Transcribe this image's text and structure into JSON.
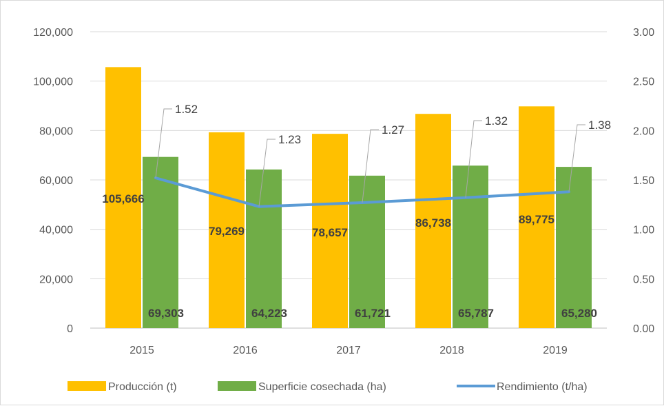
{
  "chart_data": {
    "type": "bar",
    "categories": [
      "2015",
      "2016",
      "2017",
      "2018",
      "2019"
    ],
    "series": [
      {
        "name": "Producción (t)",
        "kind": "bar",
        "axis": "left",
        "color": "#FFC000",
        "values": [
          105666,
          79269,
          78657,
          86738,
          89775
        ],
        "labels": [
          "105,666",
          "79,269",
          "78,657",
          "86,738",
          "89,775"
        ]
      },
      {
        "name": "Superficie cosechada (ha)",
        "kind": "bar",
        "axis": "left",
        "color": "#70AD47",
        "values": [
          69303,
          64223,
          61721,
          65787,
          65280
        ],
        "labels": [
          "69,303",
          "64,223",
          "61,721",
          "65,787",
          "65,280"
        ]
      },
      {
        "name": "Rendimiento (t/ha)",
        "kind": "line",
        "axis": "right",
        "color": "#5B9BD5",
        "values": [
          1.52,
          1.23,
          1.27,
          1.32,
          1.38
        ],
        "labels": [
          "1.52",
          "1.23",
          "1.27",
          "1.32",
          "1.38"
        ]
      }
    ],
    "ylim_left": [
      0,
      120000
    ],
    "ylim_right": [
      0,
      3.0
    ],
    "yticks_left": [
      "0",
      "20,000",
      "40,000",
      "60,000",
      "80,000",
      "100,000",
      "120,000"
    ],
    "yticks_right": [
      "0.00",
      "0.50",
      "1.00",
      "1.50",
      "2.00",
      "2.50",
      "3.00"
    ],
    "grid": true,
    "legend_position": "bottom"
  }
}
